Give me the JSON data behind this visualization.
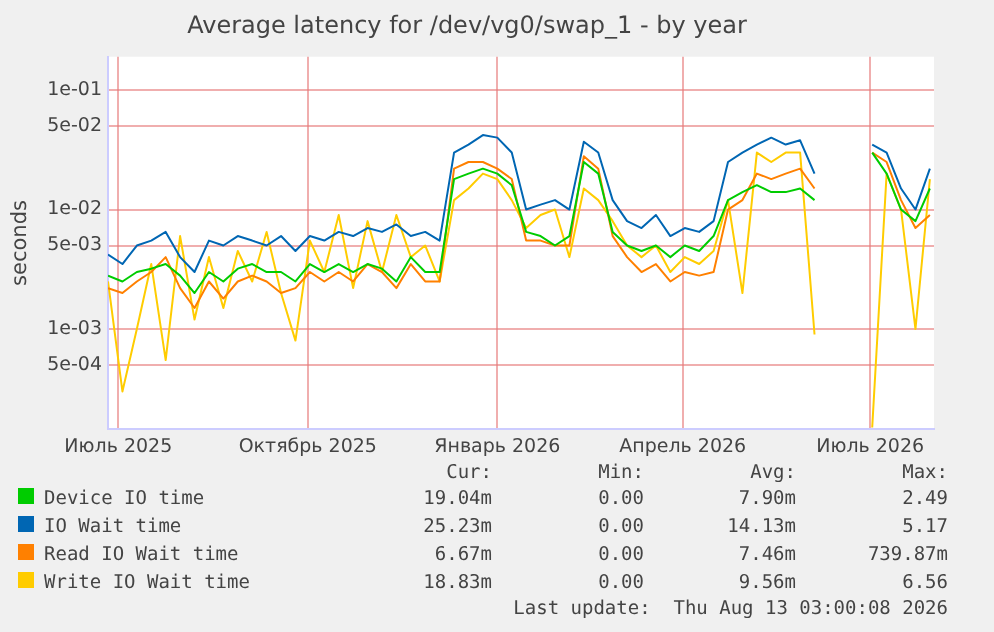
{
  "chart_data": {
    "type": "line",
    "title": "Average latency for /dev/vg0/swap_1 - by year",
    "ylabel": "seconds",
    "log": "y",
    "grid": true,
    "legend": "bottom",
    "marker": "none",
    "line_style": "solid",
    "x": [
      "2025-06-26",
      "2025-07-03",
      "2025-07-10",
      "2025-07-17",
      "2025-07-24",
      "2025-07-31",
      "2025-08-07",
      "2025-08-14",
      "2025-08-21",
      "2025-08-28",
      "2025-09-04",
      "2025-09-11",
      "2025-09-18",
      "2025-09-25",
      "2025-10-02",
      "2025-10-09",
      "2025-10-16",
      "2025-10-23",
      "2025-10-30",
      "2025-11-06",
      "2025-11-13",
      "2025-11-20",
      "2025-11-27",
      "2025-12-04",
      "2025-12-11",
      "2025-12-18",
      "2025-12-25",
      "2026-01-01",
      "2026-01-08",
      "2026-01-15",
      "2026-01-22",
      "2026-01-29",
      "2026-02-05",
      "2026-02-12",
      "2026-02-19",
      "2026-02-26",
      "2026-03-05",
      "2026-03-12",
      "2026-03-19",
      "2026-03-26",
      "2026-04-02",
      "2026-04-09",
      "2026-04-16",
      "2026-04-23",
      "2026-04-30",
      "2026-05-07",
      "2026-05-14",
      "2026-05-21",
      "2026-05-28",
      "2026-06-04",
      "2026-06-11",
      "2026-06-18",
      "2026-06-25",
      "2026-07-02",
      "2026-07-09",
      "2026-07-16",
      "2026-07-23",
      "2026-07-30"
    ],
    "xlim": [
      "2025-06-26",
      "2026-08-01"
    ],
    "xticks": [
      {
        "value": "2025-07-01",
        "label": "Июль 2025"
      },
      {
        "value": "2025-10-01",
        "label": "Октябрь 2025"
      },
      {
        "value": "2026-01-01",
        "label": "Январь 2026"
      },
      {
        "value": "2026-04-01",
        "label": "Апрель 2026"
      },
      {
        "value": "2026-07-01",
        "label": "Июль 2026"
      }
    ],
    "ylim": [
      0.000145,
      0.19
    ],
    "yticks": [
      {
        "value": 0.1,
        "label": "1e-01"
      },
      {
        "value": 0.05,
        "label": "5e-02"
      },
      {
        "value": 0.01,
        "label": "1e-02"
      },
      {
        "value": 0.005,
        "label": "5e-03"
      },
      {
        "value": 0.001,
        "label": "1e-03"
      },
      {
        "value": 0.0005,
        "label": "5e-04"
      }
    ],
    "series": [
      {
        "name": "Device IO time",
        "color": "#00cc00",
        "values": [
          0.0028,
          0.0025,
          0.003,
          0.0032,
          0.0035,
          0.0028,
          0.002,
          0.003,
          0.0025,
          0.0032,
          0.0035,
          0.003,
          0.003,
          0.0025,
          0.0035,
          0.003,
          0.0035,
          0.003,
          0.0035,
          0.0032,
          0.0025,
          0.004,
          0.003,
          0.003,
          0.018,
          0.02,
          0.022,
          0.02,
          0.016,
          0.0065,
          0.006,
          0.005,
          0.006,
          0.025,
          0.02,
          0.0065,
          0.005,
          0.0045,
          0.005,
          0.004,
          0.005,
          0.0045,
          0.006,
          0.012,
          0.014,
          0.016,
          0.014,
          0.014,
          0.015,
          0.012,
          null,
          null,
          null,
          0.03,
          0.02,
          0.01,
          0.008,
          0.015
        ]
      },
      {
        "name": "IO Wait time",
        "color": "#0066b3",
        "values": [
          0.0042,
          0.0035,
          0.005,
          0.0055,
          0.0065,
          0.004,
          0.003,
          0.0055,
          0.005,
          0.006,
          0.0055,
          0.005,
          0.006,
          0.0045,
          0.006,
          0.0055,
          0.0065,
          0.006,
          0.007,
          0.0065,
          0.0075,
          0.006,
          0.0065,
          0.0055,
          0.03,
          0.035,
          0.042,
          0.04,
          0.03,
          0.01,
          0.011,
          0.012,
          0.01,
          0.037,
          0.03,
          0.012,
          0.008,
          0.007,
          0.009,
          0.006,
          0.007,
          0.0065,
          0.008,
          0.025,
          0.03,
          0.035,
          0.04,
          0.035,
          0.038,
          0.02,
          null,
          null,
          null,
          0.035,
          0.03,
          0.015,
          0.01,
          0.022
        ]
      },
      {
        "name": "Read IO Wait time",
        "color": "#ff8000",
        "values": [
          0.0022,
          0.002,
          0.0025,
          0.003,
          0.004,
          0.0022,
          0.0015,
          0.0025,
          0.0018,
          0.0025,
          0.0028,
          0.0025,
          0.002,
          0.0022,
          0.003,
          0.0025,
          0.003,
          0.0025,
          0.0035,
          0.003,
          0.0022,
          0.0035,
          0.0025,
          0.0025,
          0.022,
          0.025,
          0.025,
          0.022,
          0.018,
          0.0055,
          0.0055,
          0.005,
          0.005,
          0.028,
          0.022,
          0.006,
          0.004,
          0.003,
          0.0035,
          0.0025,
          0.003,
          0.0028,
          0.003,
          0.01,
          0.012,
          0.02,
          0.018,
          0.02,
          0.022,
          0.015,
          null,
          null,
          null,
          0.03,
          0.025,
          0.012,
          0.007,
          0.009
        ]
      },
      {
        "name": "Write IO Wait time",
        "color": "#ffcc00",
        "values": [
          0.0025,
          0.0003,
          0.001,
          0.0035,
          0.00055,
          0.006,
          0.0012,
          0.004,
          0.0015,
          0.0045,
          0.0025,
          0.0065,
          0.002,
          0.0008,
          0.0055,
          0.003,
          0.009,
          0.0022,
          0.008,
          0.003,
          0.009,
          0.004,
          0.005,
          0.0025,
          0.012,
          0.015,
          0.02,
          0.018,
          0.012,
          0.007,
          0.009,
          0.01,
          0.004,
          0.015,
          0.012,
          0.008,
          0.005,
          0.004,
          0.005,
          0.003,
          0.004,
          0.0035,
          0.0045,
          0.012,
          0.002,
          0.03,
          0.025,
          0.03,
          0.03,
          0.0009,
          null,
          null,
          null,
          0.00015,
          0.02,
          0.01,
          0.001,
          0.018
        ]
      }
    ],
    "annotations": [
      "Cur:",
      "Min:",
      "Avg:",
      "Max:",
      "19.04m",
      "0.00",
      "7.90m",
      "2.49",
      "25.23m",
      "0.00",
      "14.13m",
      "5.17",
      "6.67m",
      "0.00",
      "7.46m",
      "739.87m",
      "18.83m",
      "0.00",
      "9.56m",
      "6.56",
      "Last update:  Thu Aug 13 03:00:08 2026"
    ]
  }
}
